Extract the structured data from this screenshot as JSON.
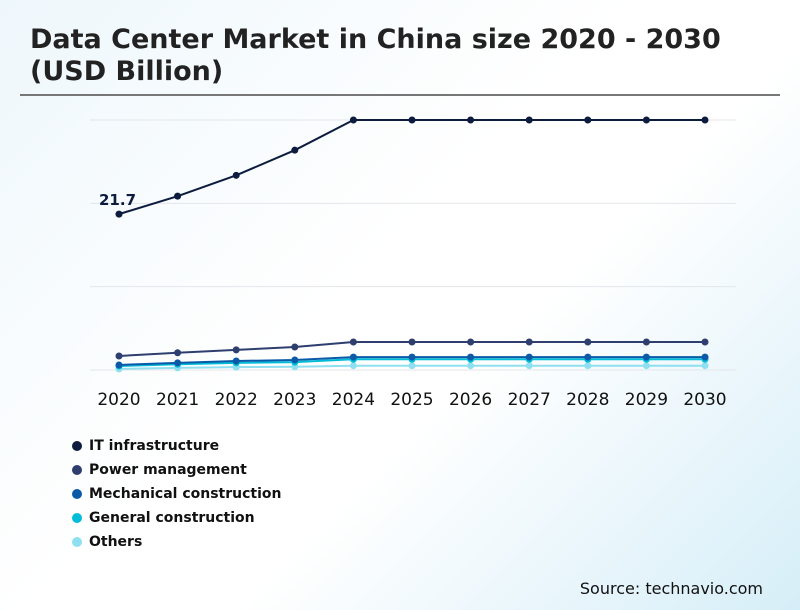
{
  "title": "Data Center Market in China size 2020 - 2030 (USD Billion)",
  "source": "Source: technavio.com",
  "chart_data": {
    "type": "line",
    "title": "Data Center Market in China size 2020 - 2030 (USD Billion)",
    "categories": [
      "2020",
      "2021",
      "2022",
      "2023",
      "2024",
      "2025",
      "2026",
      "2027",
      "2028",
      "2029",
      "2030"
    ],
    "ylim": [
      0,
      34.8
    ],
    "grid": true,
    "legend": "bottom-left",
    "annotation": "21.7",
    "series": [
      {
        "name": "IT infrastructure",
        "color": "#0d1b3e",
        "values": [
          21.7,
          24.2,
          27.1,
          30.6,
          34.8,
          34.8,
          34.8,
          34.8,
          34.8,
          34.8,
          34.8
        ]
      },
      {
        "name": "Power management",
        "color": "#2d3e6f",
        "values": [
          1.95,
          2.4,
          2.8,
          3.2,
          3.9,
          3.9,
          3.9,
          3.9,
          3.9,
          3.9,
          3.9
        ]
      },
      {
        "name": "Mechanical construction",
        "color": "#0a5aa8",
        "values": [
          0.7,
          1.0,
          1.25,
          1.4,
          1.8,
          1.8,
          1.8,
          1.8,
          1.8,
          1.8,
          1.8
        ]
      },
      {
        "name": "General construction",
        "color": "#00bcd8",
        "values": [
          0.55,
          0.8,
          1.0,
          1.1,
          1.5,
          1.5,
          1.5,
          1.5,
          1.5,
          1.5,
          1.5
        ]
      },
      {
        "name": "Others",
        "color": "#8ee0f0",
        "values": [
          0.15,
          0.3,
          0.4,
          0.45,
          0.6,
          0.6,
          0.6,
          0.6,
          0.6,
          0.6,
          0.6
        ]
      }
    ]
  }
}
